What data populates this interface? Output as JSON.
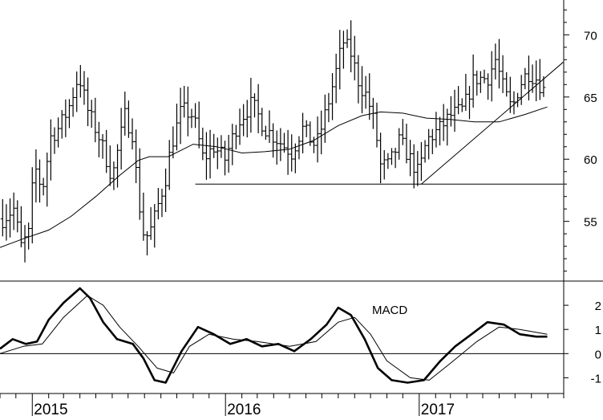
{
  "chart_data": [
    {
      "type": "bar",
      "subtype": "ohlc-weekly",
      "title": "",
      "xlabel": "",
      "ylabel": "",
      "ylim": [
        50.2,
        72.8
      ],
      "y_ticks": [
        55,
        60,
        65,
        70
      ],
      "y_tick_labels": [
        "55",
        "60",
        "65",
        "70"
      ],
      "y_axis_side": "right",
      "grid": false,
      "time_range": [
        "2014-11",
        "2017-09"
      ],
      "year_labels": [
        {
          "label": "2015",
          "date": "2015-01-01"
        },
        {
          "label": "2016",
          "date": "2016-01-01"
        },
        {
          "label": "2017",
          "date": "2017-01-01"
        }
      ],
      "series": [
        {
          "kind": "price-bars",
          "color": "#000000",
          "keypoints": [
            [
              "2014-11-06",
              55.2
            ],
            [
              "2014-11-27",
              56.0
            ],
            [
              "2014-12-11",
              53.0
            ],
            [
              "2014-12-25",
              54.0
            ],
            [
              "2015-01-05",
              59.5
            ],
            [
              "2015-01-20",
              57.5
            ],
            [
              "2015-02-05",
              61.8
            ],
            [
              "2015-02-20",
              62.5
            ],
            [
              "2015-03-10",
              64.0
            ],
            [
              "2015-03-30",
              66.8
            ],
            [
              "2015-04-15",
              64.0
            ],
            [
              "2015-05-10",
              61.5
            ],
            [
              "2015-06-01",
              58.5
            ],
            [
              "2015-06-25",
              63.5
            ],
            [
              "2015-07-10",
              62.0
            ],
            [
              "2015-07-20",
              57.0
            ],
            [
              "2015-08-01",
              53.5
            ],
            [
              "2015-08-15",
              54.5
            ],
            [
              "2015-09-10",
              58.5
            ],
            [
              "2015-09-20",
              61.0
            ],
            [
              "2015-10-10",
              64.0
            ],
            [
              "2015-11-01",
              63.5
            ],
            [
              "2015-11-20",
              60.0
            ],
            [
              "2015-12-10",
              61.0
            ],
            [
              "2015-12-31",
              60.0
            ],
            [
              "2016-01-25",
              63.0
            ],
            [
              "2016-02-20",
              64.5
            ],
            [
              "2016-03-15",
              62.5
            ],
            [
              "2016-04-10",
              61.5
            ],
            [
              "2016-05-05",
              60.5
            ],
            [
              "2016-05-25",
              62.5
            ],
            [
              "2016-06-20",
              61.0
            ],
            [
              "2016-07-10",
              64.0
            ],
            [
              "2016-07-25",
              66.5
            ],
            [
              "2016-08-10",
              69.5
            ],
            [
              "2016-08-25",
              68.5
            ],
            [
              "2016-09-10",
              66.0
            ],
            [
              "2016-09-25",
              65.0
            ],
            [
              "2016-10-10",
              62.5
            ],
            [
              "2016-10-20",
              59.5
            ],
            [
              "2016-11-05",
              59.5
            ],
            [
              "2016-11-25",
              61.5
            ],
            [
              "2016-12-15",
              60.0
            ],
            [
              "2016-12-31",
              58.8
            ],
            [
              "2017-01-15",
              61.5
            ],
            [
              "2017-02-10",
              62.5
            ],
            [
              "2017-03-01",
              63.5
            ],
            [
              "2017-03-25",
              64.0
            ],
            [
              "2017-04-15",
              66.5
            ],
            [
              "2017-05-10",
              66.5
            ],
            [
              "2017-05-25",
              68.0
            ],
            [
              "2017-06-10",
              65.5
            ],
            [
              "2017-06-25",
              64.0
            ],
            [
              "2017-07-10",
              66.0
            ],
            [
              "2017-07-25",
              67.0
            ],
            [
              "2017-08-10",
              66.5
            ],
            [
              "2017-08-25",
              65.5
            ]
          ]
        },
        {
          "kind": "moving-average",
          "color": "#000000",
          "points": [
            [
              "2014-11-01",
              52.9
            ],
            [
              "2014-12-15",
              53.6
            ],
            [
              "2015-02-01",
              54.3
            ],
            [
              "2015-03-15",
              55.4
            ],
            [
              "2015-05-01",
              57.0
            ],
            [
              "2015-06-15",
              58.7
            ],
            [
              "2015-07-20",
              59.9
            ],
            [
              "2015-08-10",
              60.2
            ],
            [
              "2015-09-15",
              60.2
            ],
            [
              "2015-11-01",
              61.2
            ],
            [
              "2015-12-15",
              61.0
            ],
            [
              "2016-02-01",
              60.5
            ],
            [
              "2016-03-15",
              60.6
            ],
            [
              "2016-05-01",
              60.8
            ],
            [
              "2016-06-15",
              61.5
            ],
            [
              "2016-08-01",
              62.7
            ],
            [
              "2016-09-15",
              63.5
            ],
            [
              "2016-10-20",
              63.8
            ],
            [
              "2016-12-01",
              63.7
            ],
            [
              "2017-01-15",
              63.3
            ],
            [
              "2017-03-01",
              63.2
            ],
            [
              "2017-04-15",
              63.0
            ],
            [
              "2017-06-01",
              63.0
            ],
            [
              "2017-07-20",
              63.6
            ],
            [
              "2017-08-31",
              64.2
            ]
          ]
        }
      ],
      "annotations": [
        {
          "kind": "horizontal-support",
          "value": 58.0,
          "from": "2015-11-05",
          "to": "2017-09-30"
        },
        {
          "kind": "uptrend-line",
          "from": [
            "2017-01-05",
            58.0
          ],
          "to": [
            "2017-09-30",
            67.8
          ]
        }
      ]
    },
    {
      "type": "line",
      "title": "MACD",
      "ylim": [
        -1.65,
        3.0
      ],
      "y_ticks": [
        -1,
        0,
        1,
        2
      ],
      "y_tick_labels": [
        "-1",
        "0",
        "1",
        "2"
      ],
      "zero_line": true,
      "grid": false,
      "series": [
        {
          "name": "MACD",
          "style": "thick",
          "color": "#000000",
          "points": [
            [
              "2014-11-01",
              0.2
            ],
            [
              "2014-11-25",
              0.6
            ],
            [
              "2014-12-20",
              0.4
            ],
            [
              "2015-01-10",
              0.5
            ],
            [
              "2015-02-01",
              1.4
            ],
            [
              "2015-03-01",
              2.1
            ],
            [
              "2015-04-01",
              2.7
            ],
            [
              "2015-04-20",
              2.3
            ],
            [
              "2015-05-15",
              1.3
            ],
            [
              "2015-06-10",
              0.6
            ],
            [
              "2015-07-10",
              0.4
            ],
            [
              "2015-07-30",
              -0.2
            ],
            [
              "2015-08-20",
              -1.1
            ],
            [
              "2015-09-10",
              -1.2
            ],
            [
              "2015-10-10",
              0.1
            ],
            [
              "2015-11-10",
              1.1
            ],
            [
              "2015-12-10",
              0.8
            ],
            [
              "2016-01-10",
              0.4
            ],
            [
              "2016-02-10",
              0.6
            ],
            [
              "2016-03-10",
              0.3
            ],
            [
              "2016-04-10",
              0.4
            ],
            [
              "2016-05-10",
              0.1
            ],
            [
              "2016-06-10",
              0.6
            ],
            [
              "2016-07-10",
              1.2
            ],
            [
              "2016-08-01",
              1.9
            ],
            [
              "2016-08-25",
              1.6
            ],
            [
              "2016-09-20",
              0.6
            ],
            [
              "2016-10-15",
              -0.6
            ],
            [
              "2016-11-10",
              -1.1
            ],
            [
              "2016-12-10",
              -1.2
            ],
            [
              "2017-01-10",
              -1.1
            ],
            [
              "2017-02-10",
              -0.3
            ],
            [
              "2017-03-10",
              0.3
            ],
            [
              "2017-04-10",
              0.8
            ],
            [
              "2017-05-10",
              1.3
            ],
            [
              "2017-06-10",
              1.2
            ],
            [
              "2017-07-10",
              0.8
            ],
            [
              "2017-08-10",
              0.7
            ],
            [
              "2017-08-31",
              0.7
            ]
          ]
        },
        {
          "name": "signal",
          "style": "thin",
          "color": "#000000",
          "points": [
            [
              "2014-11-01",
              0.0
            ],
            [
              "2014-12-15",
              0.3
            ],
            [
              "2015-01-20",
              0.4
            ],
            [
              "2015-03-01",
              1.5
            ],
            [
              "2015-04-15",
              2.4
            ],
            [
              "2015-05-15",
              2.0
            ],
            [
              "2015-06-15",
              1.1
            ],
            [
              "2015-07-20",
              0.3
            ],
            [
              "2015-08-25",
              -0.6
            ],
            [
              "2015-09-25",
              -0.8
            ],
            [
              "2015-10-25",
              0.3
            ],
            [
              "2015-12-01",
              0.8
            ],
            [
              "2016-01-15",
              0.6
            ],
            [
              "2016-03-01",
              0.5
            ],
            [
              "2016-05-01",
              0.3
            ],
            [
              "2016-06-20",
              0.5
            ],
            [
              "2016-08-01",
              1.3
            ],
            [
              "2016-09-01",
              1.5
            ],
            [
              "2016-10-01",
              0.8
            ],
            [
              "2016-11-01",
              -0.3
            ],
            [
              "2016-12-15",
              -1.0
            ],
            [
              "2017-01-20",
              -1.1
            ],
            [
              "2017-03-01",
              -0.4
            ],
            [
              "2017-04-20",
              0.5
            ],
            [
              "2017-06-01",
              1.1
            ],
            [
              "2017-07-10",
              1.0
            ],
            [
              "2017-08-31",
              0.8
            ]
          ]
        }
      ]
    }
  ]
}
